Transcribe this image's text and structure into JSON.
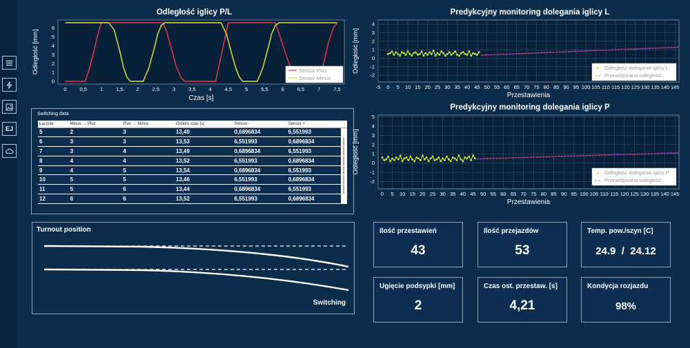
{
  "sidebar": {
    "items": [
      {
        "name": "menu-icon"
      },
      {
        "name": "lightning-icon"
      },
      {
        "name": "image-icon"
      },
      {
        "name": "ej-icon",
        "label": "EJ"
      },
      {
        "name": "cloud-icon"
      }
    ]
  },
  "chart1": {
    "title": "Odległość iglicy P/L",
    "xlabel": "Czas [s]",
    "ylabel": "Odległość [mm]",
    "xticks": [
      "0",
      "0,5",
      "1",
      "1,5",
      "2",
      "2,5",
      "3",
      "3,5",
      "4",
      "4,5",
      "5",
      "5,5",
      "6",
      "6,5",
      "7",
      "7,5"
    ],
    "yticks": [
      "0",
      "1",
      "2",
      "3",
      "4",
      "5",
      "6"
    ],
    "legend": [
      "Sensor Plus",
      "Sensor Minus"
    ],
    "colors": {
      "plus": "#d8384a",
      "minus": "#ccd63c"
    }
  },
  "chart2": {
    "title": "Predykcyjny monitoring dolegania iglicy L",
    "xlabel": "Przestawienia",
    "ylabel": "Odległość [mm]",
    "xticks": [
      "-5",
      "0",
      "5",
      "10",
      "15",
      "20",
      "25",
      "30",
      "35",
      "40",
      "45",
      "50",
      "55",
      "60",
      "65",
      "70",
      "75",
      "80",
      "85",
      "90",
      "95",
      "100",
      "105",
      "110",
      "115",
      "120",
      "125",
      "130",
      "135",
      "140",
      "145"
    ],
    "yticks": [
      "-2",
      "-1",
      "0",
      "1",
      "2",
      "3",
      "4"
    ],
    "legend": [
      "Odległość dolegania iglicy L",
      "Przewidywana odległość"
    ]
  },
  "chart3": {
    "title": "Predykcyjny monitoring dolegania iglicy P",
    "xlabel": "Przestawienia",
    "ylabel": "Odległość [mm]",
    "xticks": [
      "0",
      "5",
      "10",
      "15",
      "20",
      "25",
      "30",
      "35",
      "40",
      "45",
      "50",
      "55",
      "60",
      "65",
      "70",
      "75",
      "80",
      "85",
      "90",
      "95",
      "100",
      "105",
      "110",
      "115",
      "120",
      "125",
      "130",
      "135",
      "140",
      "145"
    ],
    "yticks": [
      "-2",
      "-1",
      "0",
      "1",
      "2",
      "3",
      "4",
      "5"
    ],
    "legend": [
      "Odległość dolegania iglicy P",
      "Przewidywana odległość"
    ]
  },
  "chart_data": [
    {
      "type": "line",
      "title": "Odległość iglicy P/L",
      "xlabel": "Czas [s]",
      "ylabel": "Odległość [mm]",
      "xlim": [
        -0.2,
        7.7
      ],
      "ylim": [
        -0.3,
        6.9
      ],
      "series": [
        {
          "name": "Sensor Plus",
          "x": [
            0,
            0.25,
            0.55,
            0.65,
            0.8,
            0.9,
            1.0,
            2.7,
            2.8,
            2.95,
            3.05,
            3.2,
            3.3,
            3.35,
            3.9,
            4.15,
            4.5,
            5.8,
            5.9,
            6.1,
            6.25,
            6.4,
            6.5,
            7.0,
            7.1,
            7.25,
            7.4,
            7.5
          ],
          "values": [
            0,
            0,
            0,
            1.2,
            3.5,
            5.3,
            6.6,
            6.6,
            5.6,
            3.4,
            1.8,
            0.4,
            0,
            0,
            0,
            0,
            6.6,
            6.6,
            5.4,
            2.9,
            1.2,
            0.1,
            0,
            0,
            1.5,
            4.2,
            6.0,
            6.6
          ]
        },
        {
          "name": "Sensor Minus",
          "x": [
            0,
            1.2,
            1.35,
            1.5,
            1.6,
            1.7,
            1.8,
            2.15,
            2.3,
            2.45,
            2.55,
            2.65,
            2.75,
            4.3,
            4.45,
            4.6,
            4.7,
            4.8,
            4.9,
            5.3,
            5.45,
            5.6,
            5.7,
            5.8,
            5.9,
            7.5
          ],
          "values": [
            6.6,
            6.6,
            5.8,
            3.5,
            1.7,
            0.5,
            0,
            0,
            1.4,
            3.6,
            5.3,
            6.3,
            6.6,
            6.6,
            5.3,
            3.0,
            1.6,
            0.5,
            0,
            0,
            1.5,
            3.8,
            5.4,
            6.3,
            6.6,
            6.6
          ]
        }
      ]
    },
    {
      "type": "line",
      "title": "Predykcyjny monitoring dolegania iglicy L",
      "xlabel": "Przestawienia",
      "ylabel": "Odległość [mm]",
      "xlim": [
        -5,
        147
      ],
      "ylim": [
        -2.8,
        4.5
      ],
      "series": [
        {
          "name": "Odległość dolegania iglicy L",
          "values": [
            0.5,
            0.6,
            0.8,
            0.4,
            0.7,
            0.5,
            0.3,
            0.7,
            0.6,
            0.4,
            0.8,
            0.5,
            0.3,
            0.6,
            0.7,
            0.4,
            0.5,
            0.8,
            0.3,
            0.6,
            0.4,
            0.7,
            0.5,
            0.9,
            0.3,
            0.6,
            0.4,
            0.8,
            0.6,
            0.3,
            0.5,
            0.7,
            0.4,
            0.6,
            0.8,
            0.4,
            0.3,
            0.6,
            0.7,
            0.5,
            0.4,
            0.8,
            0.3,
            0.6,
            0.5,
            0.4,
            0.7
          ]
        },
        {
          "name": "Przewidywana odległość",
          "x": [
            47,
            147
          ],
          "values": [
            0.35,
            1.3
          ]
        }
      ]
    },
    {
      "type": "line",
      "title": "Predykcyjny monitoring dolegania iglicy P",
      "xlabel": "Przestawienia",
      "ylabel": "Odległość [mm]",
      "xlim": [
        -2,
        147
      ],
      "ylim": [
        -2.8,
        5.2
      ],
      "series": [
        {
          "name": "Odległość dolegania iglicy P",
          "values": [
            0.6,
            0.3,
            0.4,
            0.7,
            0.2,
            0.5,
            0.3,
            0.6,
            0.4,
            0.8,
            0.2,
            0.5,
            0.6,
            0.3,
            0.7,
            0.4,
            0.2,
            0.6,
            0.5,
            0.3,
            0.8,
            0.4,
            0.6,
            0.2,
            0.5,
            0.7,
            0.3,
            0.4,
            0.6,
            0.2,
            0.5,
            0.3,
            0.7,
            0.4,
            0.2,
            0.6,
            0.5,
            0.3,
            0.8,
            0.4,
            0.2,
            0.6,
            0.5,
            0.7,
            0.3,
            0.8,
            0.5
          ]
        },
        {
          "name": "Przewidywana odległość",
          "x": [
            47,
            147
          ],
          "values": [
            0.45,
            1.1
          ]
        }
      ]
    }
  ],
  "table": {
    "caption": "Switching data",
    "headers": [
      "Łącznie",
      "Minus → Plus",
      "Plus → Minus",
      "Ostatni czas [s]",
      "Sensor -",
      "Sensor +"
    ],
    "rows": [
      [
        "5",
        "2",
        "3",
        "13,49",
        "0,6896834",
        "6,551993"
      ],
      [
        "6",
        "3",
        "3",
        "13,53",
        "6,551993",
        "0,6896834"
      ],
      [
        "7",
        "3",
        "4",
        "13,49",
        "0,6896834",
        "6,551993"
      ],
      [
        "8",
        "4",
        "4",
        "13,52",
        "6,551993",
        "0,6896834"
      ],
      [
        "9",
        "4",
        "5",
        "13,54",
        "0,6896834",
        "6,551993"
      ],
      [
        "10",
        "5",
        "5",
        "13,46",
        "6,551993",
        "0,6896834"
      ],
      [
        "11",
        "5",
        "6",
        "13,44",
        "0,6896834",
        "6,551993"
      ],
      [
        "12",
        "6",
        "6",
        "13,52",
        "6,551993",
        "0,6896834"
      ]
    ]
  },
  "turnout": {
    "title": "Turnout position",
    "status": "Switching"
  },
  "cards": [
    {
      "label": "Ilość przestawień",
      "value": "43"
    },
    {
      "label": "Ilość przejazdów",
      "value": "53"
    },
    {
      "label": "Temp. pow./szyn [C]",
      "value": "24.9  /  24.12"
    },
    {
      "label": "Ugięcie podsypki [mm]",
      "value": "2"
    },
    {
      "label": "Czas ost. przestaw. [s]",
      "value": "4,21"
    },
    {
      "label": "Kondycja rozjazdu",
      "value": "98%"
    }
  ],
  "colors": {
    "background": "#0c2c4c",
    "plot_bg": "#082038",
    "grid": "#2f5478",
    "points": "#c8f03c",
    "prediction": "#b03a5a"
  }
}
